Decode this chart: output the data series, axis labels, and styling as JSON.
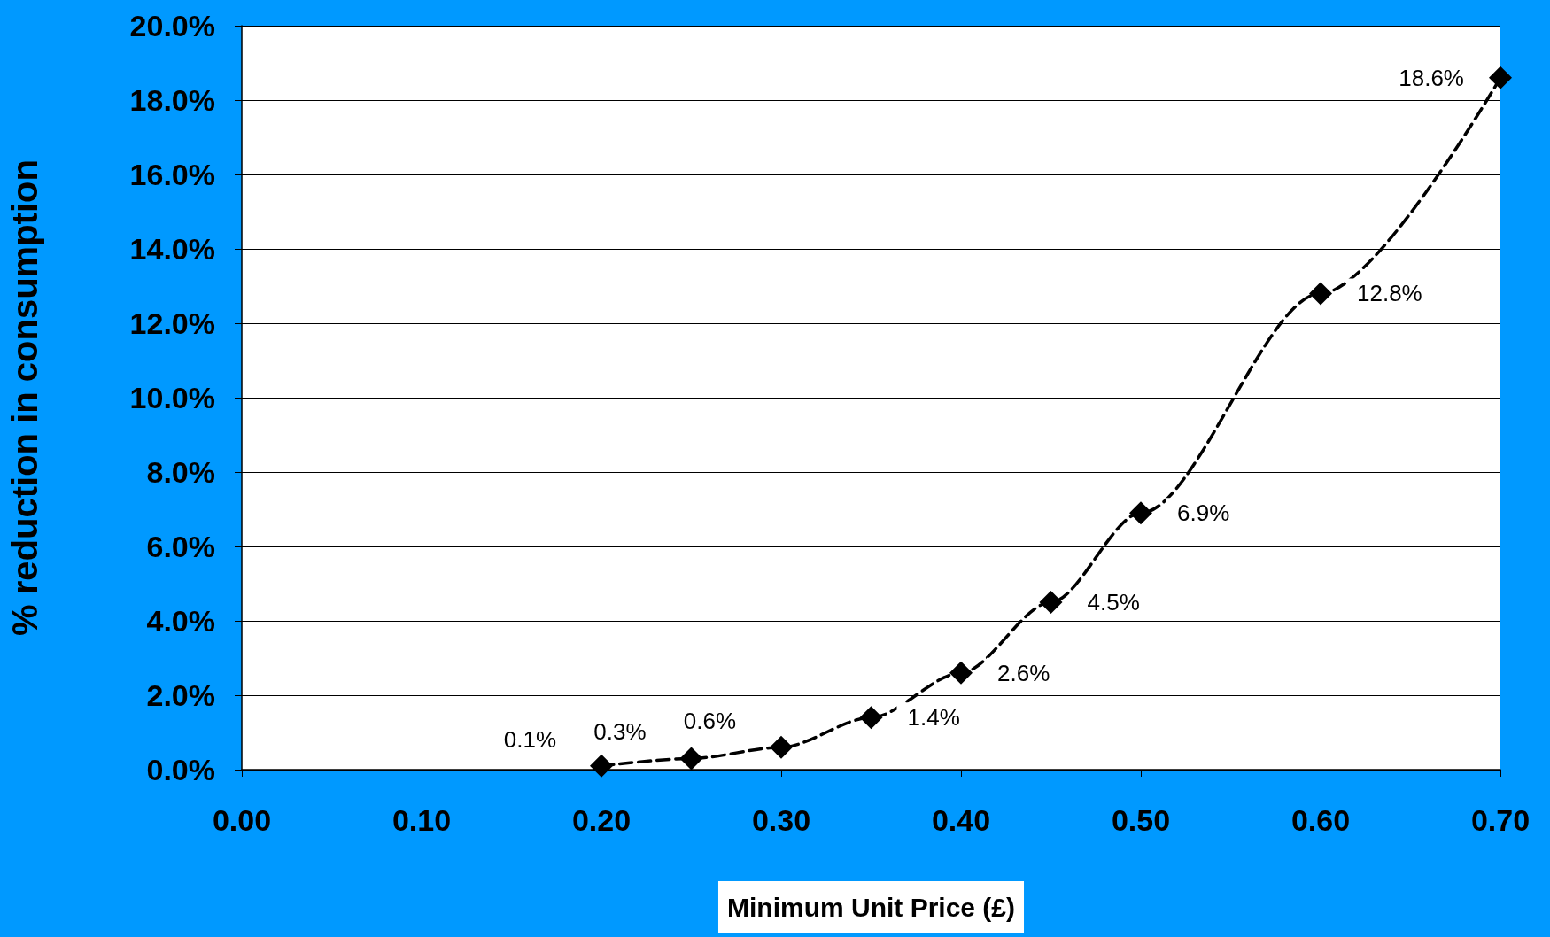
{
  "chart_data": {
    "type": "line",
    "xlabel": "Minimum Unit Price (£)",
    "ylabel": "% reduction in consumption",
    "x": [
      0.2,
      0.25,
      0.3,
      0.35,
      0.4,
      0.45,
      0.5,
      0.6,
      0.7
    ],
    "series": [
      {
        "color": "#000000",
        "values": [
          0.1,
          0.3,
          0.6,
          1.4,
          2.6,
          4.5,
          6.9,
          12.8,
          18.6
        ],
        "value_labels": [
          "0.1%",
          "0.3%",
          "0.6%",
          "1.4%",
          "2.6%",
          "4.5%",
          "6.9%",
          "12.8%",
          "18.6%"
        ]
      }
    ],
    "xlim": [
      0,
      0.7
    ],
    "xticks": [
      {
        "value": 0,
        "label": "0.00"
      },
      {
        "value": 0.1,
        "label": "0.10"
      },
      {
        "value": 0.2,
        "label": "0.20"
      },
      {
        "value": 0.3,
        "label": "0.30"
      },
      {
        "value": 0.4,
        "label": "0.40"
      },
      {
        "value": 0.5,
        "label": "0.50"
      },
      {
        "value": 0.6,
        "label": "0.60"
      },
      {
        "value": 0.7,
        "label": "0.70"
      }
    ],
    "ylim": [
      0,
      20
    ],
    "yticks": [
      {
        "value": 0,
        "label": "0.0%"
      },
      {
        "value": 2,
        "label": "2.0%"
      },
      {
        "value": 4,
        "label": "4.0%"
      },
      {
        "value": 6,
        "label": "6.0%"
      },
      {
        "value": 8,
        "label": "8.0%"
      },
      {
        "value": 10,
        "label": "10.0%"
      },
      {
        "value": 12,
        "label": "12.0%"
      },
      {
        "value": 14,
        "label": "14.0%"
      },
      {
        "value": 16,
        "label": "16.0%"
      },
      {
        "value": 18,
        "label": "18.0%"
      },
      {
        "value": 20,
        "label": "20.0%"
      }
    ],
    "grid": "y",
    "marker": "diamond",
    "line_style": "dashed"
  }
}
